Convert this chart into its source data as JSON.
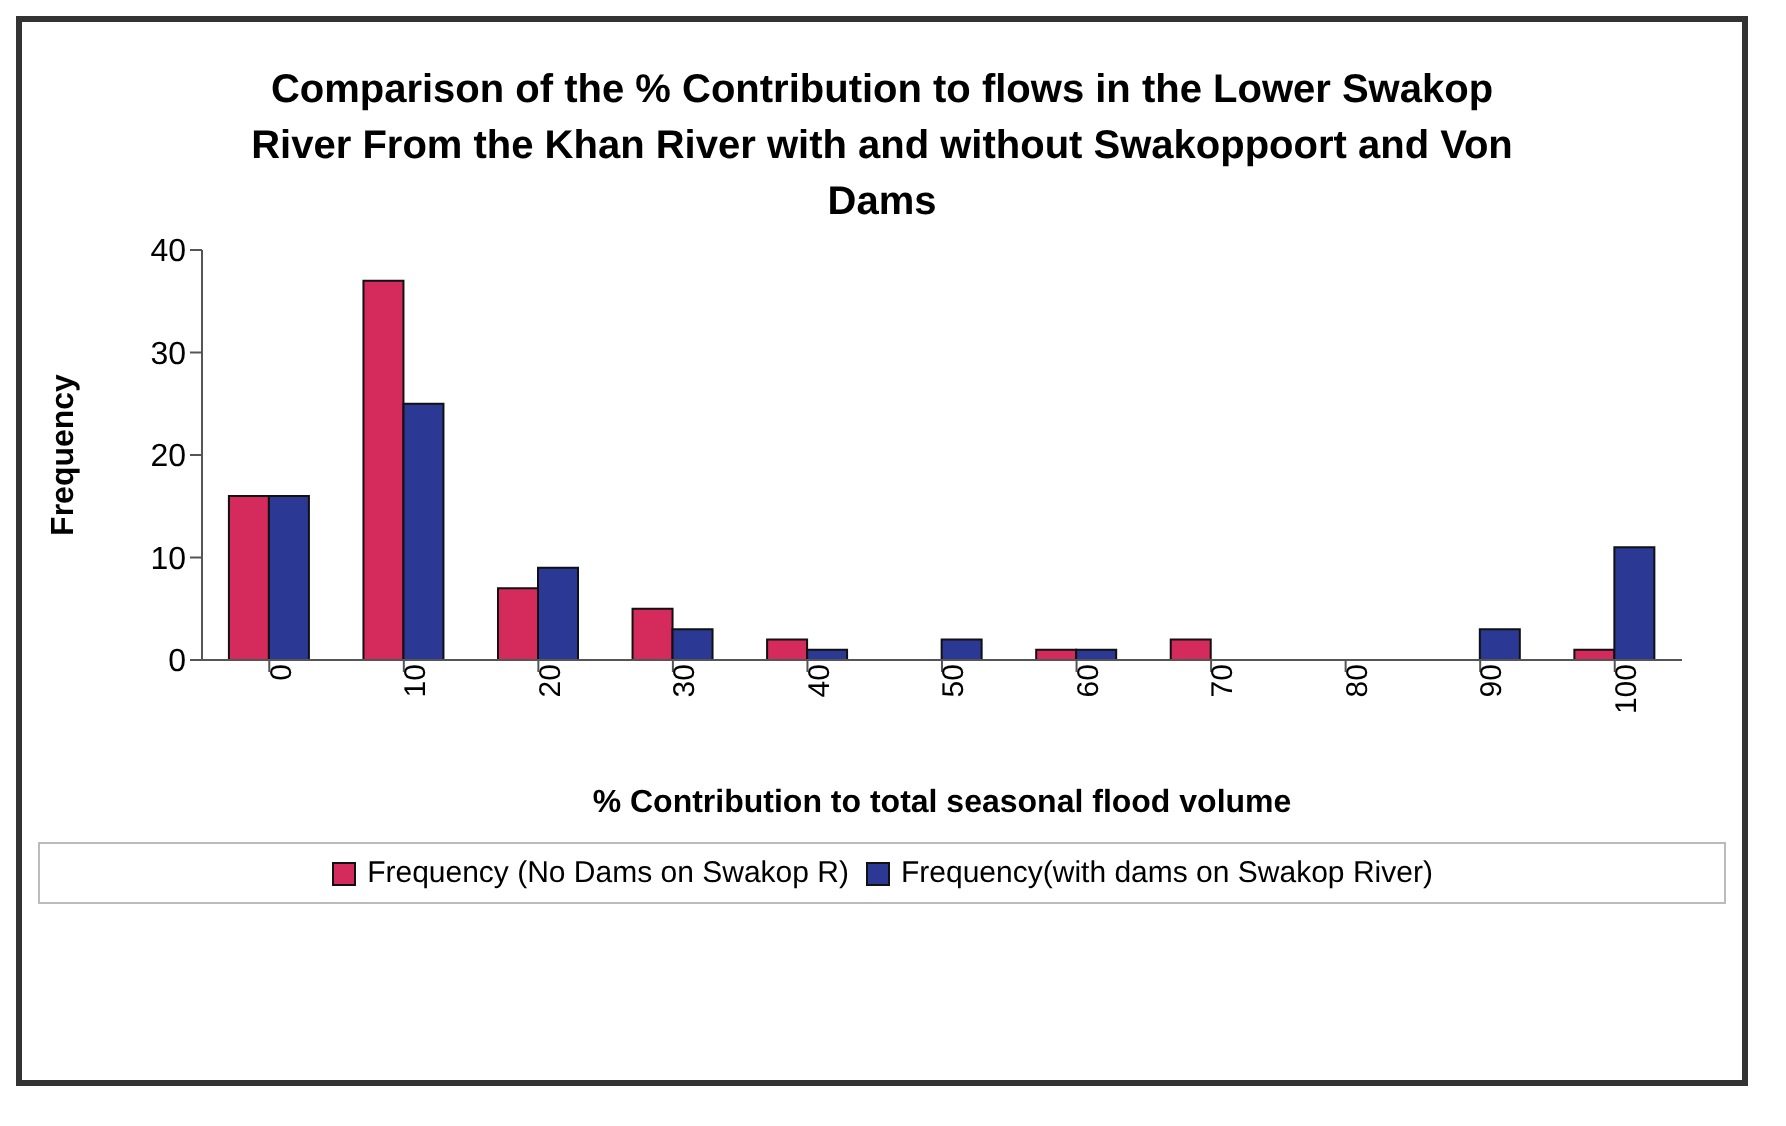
{
  "chart_data": {
    "type": "bar",
    "title": "Comparison of the % Contribution to flows in the Lower Swakop River From the Khan River with and without Swakoppoort and Von Dams",
    "xlabel": "% Contribution to total seasonal flood volume",
    "ylabel": "Frequency",
    "categories": [
      "0",
      "10",
      "20",
      "30",
      "40",
      "50",
      "60",
      "70",
      "80",
      "90",
      "100"
    ],
    "series": [
      {
        "name": "Frequency (No Dams on Swakop R)",
        "color": "#d42a5c",
        "values": [
          16,
          37,
          7,
          5,
          2,
          0,
          1,
          2,
          0,
          0,
          1
        ]
      },
      {
        "name": "Frequency(with dams on Swakop River)",
        "color": "#2b3894",
        "values": [
          16,
          25,
          9,
          3,
          1,
          2,
          1,
          0,
          0,
          3,
          11
        ]
      }
    ],
    "ylim": [
      0,
      40
    ],
    "yticks": [
      0,
      10,
      20,
      30,
      40
    ],
    "legend": "bottom"
  }
}
